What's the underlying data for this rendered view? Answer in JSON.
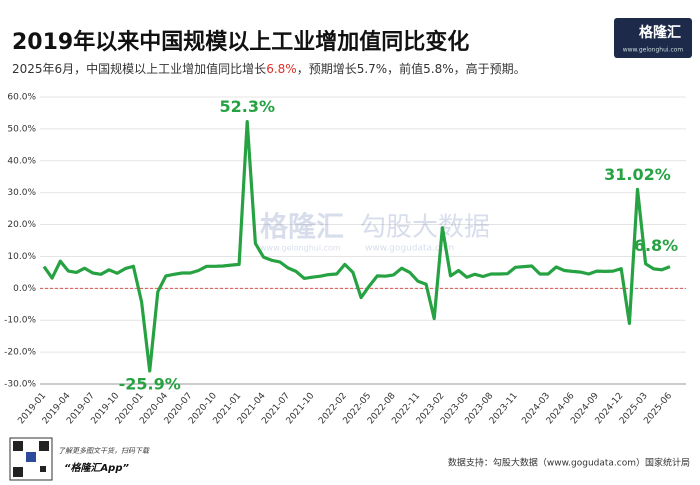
{
  "header": {
    "title": "2019年以来中国规模以上工业增加值同比变化",
    "subtitle": [
      "2025年6月，中国规模以上工业增加值同比增长",
      "6.8%",
      "，预期增长5.7%，前值5.8%，高于预期。"
    ],
    "logo": "格隆汇",
    "logo_url": "www.gelonghui.com"
  },
  "watermark": {
    "brand1": "格隆汇",
    "url1": "www.gelonghui.com",
    "brand2": "勾股大数据",
    "url2": "www.gogudata.com"
  },
  "footer": {
    "qr_text": "了解更多图文干货，扫码下载",
    "app": "“格隆汇App”",
    "source": "数据支持：勾股大数据（www.gogudata.com）国家统计局"
  },
  "chart_data": {
    "type": "line",
    "color": "#27a243",
    "categories": [
      "2019-01",
      null,
      null,
      "2019-04",
      null,
      null,
      "2019-07",
      null,
      null,
      "2019-10",
      null,
      null,
      "2020-01",
      null,
      null,
      "2020-04",
      null,
      null,
      "2020-07",
      null,
      null,
      "2020-10",
      null,
      null,
      "2021-01",
      null,
      null,
      "2021-04",
      null,
      null,
      "2021-07",
      null,
      null,
      "2021-10",
      null,
      null,
      null,
      "2022-02",
      null,
      null,
      "2022-05",
      null,
      null,
      "2022-08",
      null,
      null,
      "2022-11",
      null,
      null,
      "2023-02",
      null,
      null,
      "2023-05",
      null,
      null,
      "2023-08",
      null,
      null,
      "2023-11",
      null,
      null,
      null,
      "2024-03",
      null,
      null,
      "2024-06",
      null,
      null,
      "2024-09",
      null,
      null,
      "2024-12",
      null,
      null,
      "2025-03",
      null,
      null,
      "2025-06"
    ],
    "values": [
      6.8,
      3.2,
      8.5,
      5.4,
      5.0,
      6.3,
      4.8,
      4.4,
      5.8,
      4.7,
      6.2,
      6.9,
      -4.3,
      -25.9,
      -1.1,
      3.9,
      4.4,
      4.8,
      4.8,
      5.6,
      6.9,
      6.9,
      7.0,
      7.3,
      7.5,
      52.3,
      14.1,
      9.8,
      8.8,
      8.3,
      6.4,
      5.3,
      3.1,
      3.5,
      3.8,
      4.3,
      4.5,
      7.5,
      5.0,
      -2.9,
      0.7,
      3.9,
      3.8,
      4.2,
      6.3,
      5.0,
      2.2,
      1.3,
      -9.5,
      19.0,
      3.9,
      5.6,
      3.5,
      4.4,
      3.7,
      4.5,
      4.5,
      4.6,
      6.6,
      6.8,
      7.0,
      4.5,
      4.5,
      6.7,
      5.6,
      5.3,
      5.1,
      4.5,
      5.4,
      5.3,
      5.4,
      6.2,
      -11.0,
      31.02,
      7.7,
      6.1,
      5.8,
      6.8
    ],
    "value_labels": [
      null,
      null,
      null,
      null,
      null,
      null,
      null,
      null,
      null,
      null,
      null,
      null,
      null,
      "-25.9%",
      null,
      null,
      null,
      null,
      null,
      null,
      null,
      null,
      null,
      null,
      null,
      "52.3%",
      null,
      null,
      null,
      null,
      null,
      null,
      null,
      null,
      null,
      null,
      null,
      null,
      null,
      null,
      null,
      null,
      null,
      null,
      null,
      null,
      null,
      null,
      null,
      null,
      null,
      null,
      null,
      null,
      null,
      null,
      null,
      null,
      null,
      null,
      null,
      null,
      null,
      null,
      null,
      null,
      null,
      null,
      null,
      null,
      null,
      null,
      null,
      "31.02%",
      null,
      null,
      null,
      "6.8%"
    ],
    "ylim": [
      -30,
      60
    ],
    "yticks": [
      {
        "value": -30,
        "label": "-30.0%"
      },
      {
        "value": -20,
        "label": "-20.0%"
      },
      {
        "value": -10,
        "label": "-10.0%"
      },
      {
        "value": 0,
        "label": "0.0%"
      },
      {
        "value": 10,
        "label": "10.0%"
      },
      {
        "value": 20,
        "label": "20.0%"
      },
      {
        "value": 30,
        "label": "30.0%"
      },
      {
        "value": 40,
        "label": "40.0%"
      },
      {
        "value": 50,
        "label": "50.0%"
      },
      {
        "value": 60,
        "label": "60.0%"
      }
    ],
    "grid": true
  }
}
